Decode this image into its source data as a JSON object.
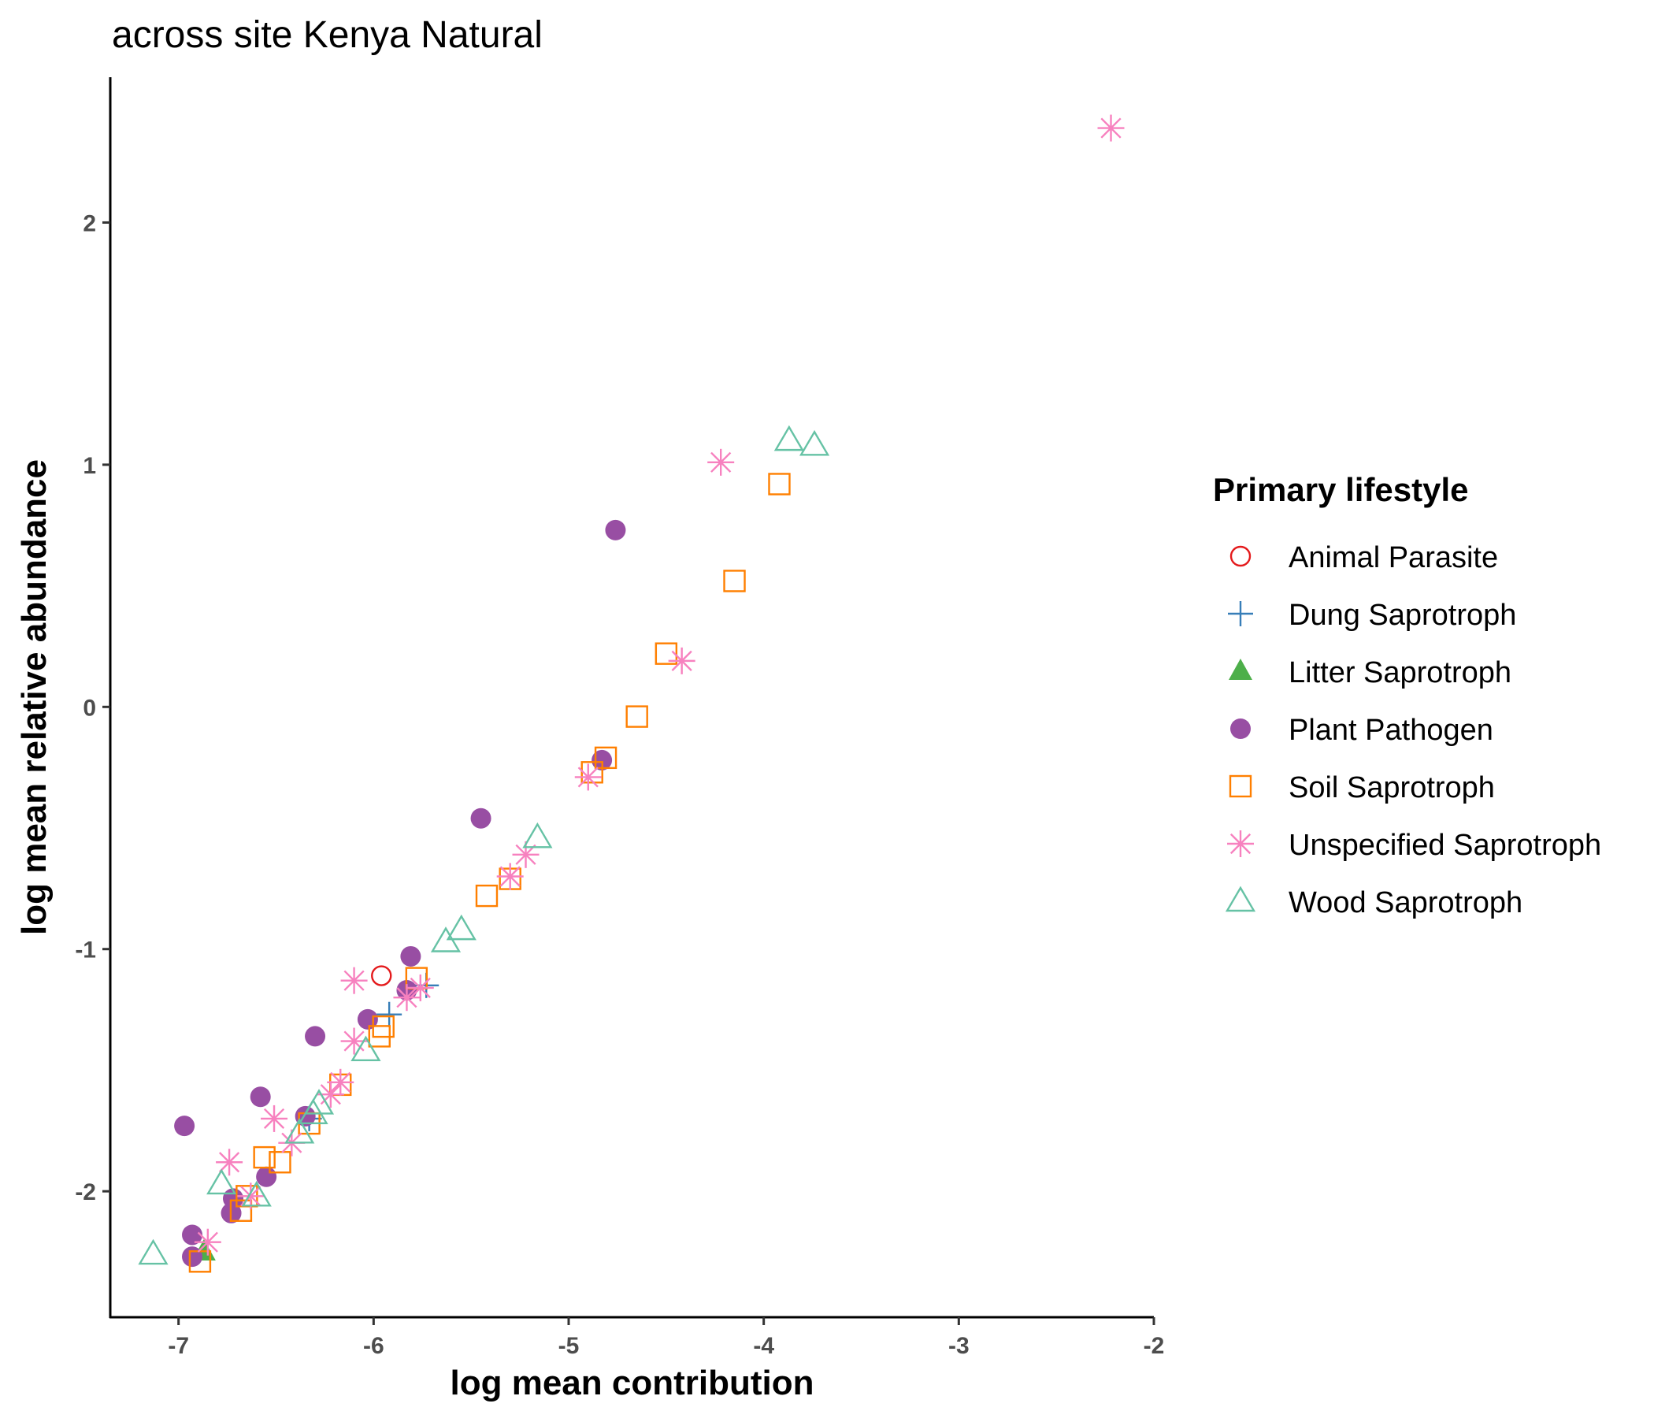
{
  "chart_data": {
    "type": "scatter",
    "title": "across site Kenya Natural",
    "xlabel": "log mean contribution",
    "ylabel": "log mean relative abundance",
    "xlim": [
      -7.35,
      -2.0
    ],
    "ylim": [
      -2.52,
      2.6
    ],
    "xticks": [
      -7,
      -6,
      -5,
      -4,
      -3,
      -2
    ],
    "yticks": [
      -2,
      -1,
      0,
      1,
      2
    ],
    "grid": false,
    "legend": {
      "title": "Primary lifestyle",
      "position": "right"
    },
    "series": [
      {
        "name": "Animal Parasite",
        "color": "#E41A1C",
        "marker": "open-circle",
        "points": [
          [
            -5.96,
            -1.11
          ]
        ]
      },
      {
        "name": "Dung Saprotroph",
        "color": "#377EB8",
        "marker": "plus",
        "points": [
          [
            -5.73,
            -1.15
          ],
          [
            -5.92,
            -1.27
          ],
          [
            -6.33,
            -1.7
          ]
        ]
      },
      {
        "name": "Litter Saprotroph",
        "color": "#4DAF4A",
        "marker": "filled-triangle",
        "points": [
          [
            -6.87,
            -2.25
          ]
        ]
      },
      {
        "name": "Plant Pathogen",
        "color": "#984EA3",
        "marker": "filled-circle",
        "points": [
          [
            -4.76,
            0.73
          ],
          [
            -4.83,
            -0.22
          ],
          [
            -5.45,
            -0.46
          ],
          [
            -5.81,
            -1.03
          ],
          [
            -5.83,
            -1.17
          ],
          [
            -6.03,
            -1.29
          ],
          [
            -6.3,
            -1.36
          ],
          [
            -6.58,
            -1.61
          ],
          [
            -6.35,
            -1.69
          ],
          [
            -6.97,
            -1.73
          ],
          [
            -6.55,
            -1.94
          ],
          [
            -6.72,
            -2.03
          ],
          [
            -6.73,
            -2.09
          ],
          [
            -6.93,
            -2.18
          ],
          [
            -6.93,
            -2.27
          ]
        ]
      },
      {
        "name": "Soil Saprotroph",
        "color": "#FF7F00",
        "marker": "open-square",
        "points": [
          [
            -3.92,
            0.92
          ],
          [
            -4.15,
            0.52
          ],
          [
            -4.5,
            0.22
          ],
          [
            -4.65,
            -0.04
          ],
          [
            -4.81,
            -0.21
          ],
          [
            -4.88,
            -0.27
          ],
          [
            -5.3,
            -0.71
          ],
          [
            -5.42,
            -0.78
          ],
          [
            -5.78,
            -1.12
          ],
          [
            -5.95,
            -1.32
          ],
          [
            -5.97,
            -1.36
          ],
          [
            -6.17,
            -1.56
          ],
          [
            -6.33,
            -1.72
          ],
          [
            -6.48,
            -1.88
          ],
          [
            -6.56,
            -1.86
          ],
          [
            -6.65,
            -2.02
          ],
          [
            -6.68,
            -2.08
          ],
          [
            -6.89,
            -2.29
          ]
        ]
      },
      {
        "name": "Unspecified Saprotroph",
        "color": "#F781BF",
        "marker": "asterisk",
        "points": [
          [
            -2.22,
            2.39
          ],
          [
            -4.22,
            1.01
          ],
          [
            -4.42,
            0.19
          ],
          [
            -4.9,
            -0.29
          ],
          [
            -5.22,
            -0.61
          ],
          [
            -5.3,
            -0.7
          ],
          [
            -5.76,
            -1.16
          ],
          [
            -5.83,
            -1.2
          ],
          [
            -6.1,
            -1.13
          ],
          [
            -6.1,
            -1.38
          ],
          [
            -6.17,
            -1.55
          ],
          [
            -6.22,
            -1.6
          ],
          [
            -6.42,
            -1.8
          ],
          [
            -6.51,
            -1.7
          ],
          [
            -6.63,
            -2.02
          ],
          [
            -6.74,
            -1.88
          ],
          [
            -6.85,
            -2.21
          ]
        ]
      },
      {
        "name": "Wood Saprotroph",
        "color": "#66C2A5",
        "marker": "open-triangle",
        "points": [
          [
            -3.87,
            1.1
          ],
          [
            -3.74,
            1.08
          ],
          [
            -5.16,
            -0.54
          ],
          [
            -5.55,
            -0.92
          ],
          [
            -5.63,
            -0.97
          ],
          [
            -6.04,
            -1.42
          ],
          [
            -6.28,
            -1.64
          ],
          [
            -6.31,
            -1.68
          ],
          [
            -6.38,
            -1.76
          ],
          [
            -6.6,
            -2.02
          ],
          [
            -6.78,
            -1.97
          ],
          [
            -7.13,
            -2.26
          ]
        ]
      }
    ]
  }
}
